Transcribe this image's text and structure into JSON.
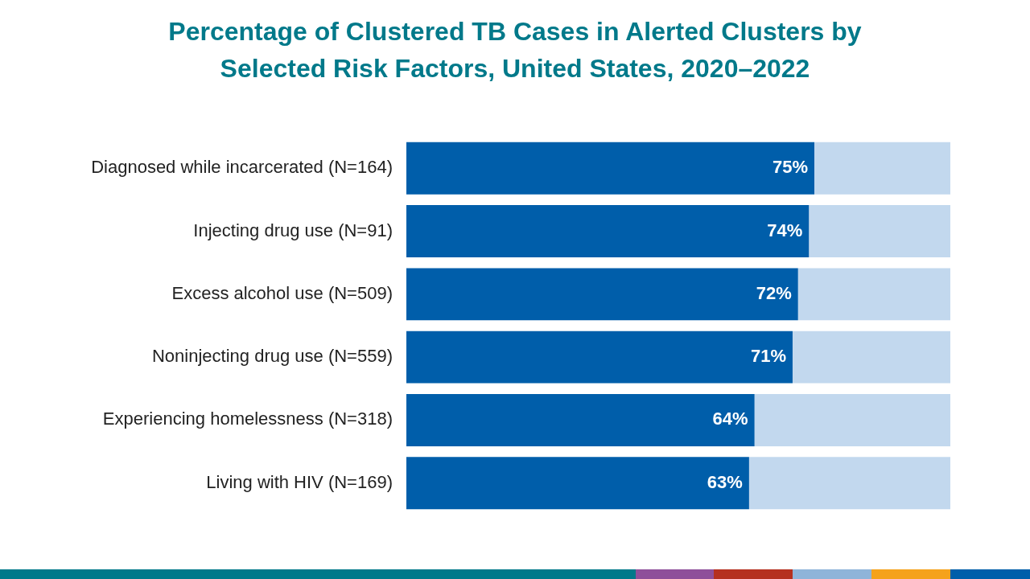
{
  "chart_data": {
    "type": "bar",
    "title": "Percentage of Clustered TB Cases in Alerted Clusters by Selected Risk Factors, United States, 2020–2022",
    "orientation": "horizontal",
    "stacked": true,
    "categories": [
      "Diagnosed while incarcerated (N=164)",
      "Injecting drug use (N=91)",
      "Excess alcohol use (N=509)",
      "Noninjecting drug use (N=559)",
      "Experiencing homelessness (N=318)",
      "Living with HIV (N=169)"
    ],
    "series": [
      {
        "color": "#005eaa",
        "values": [
          75,
          74,
          72,
          71,
          64,
          63
        ],
        "value_labels": [
          "75%",
          "74%",
          "72%",
          "71%",
          "64%",
          "63%"
        ]
      },
      {
        "color": "#c2d8ee",
        "values": [
          25,
          26,
          28,
          29,
          36,
          37
        ]
      }
    ],
    "xlim": [
      0,
      100
    ],
    "tick_labels": "y",
    "grid": false,
    "legend": false
  }
}
